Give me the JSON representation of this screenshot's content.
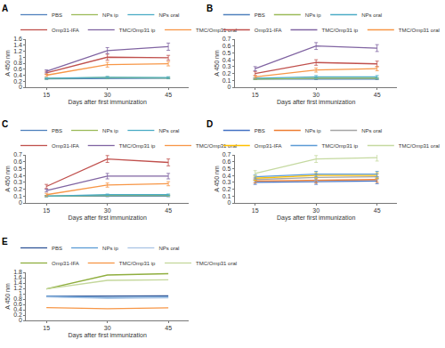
{
  "chart_data": [
    {
      "type": "line",
      "title": "A",
      "x_label": "Days after first immunization",
      "y_label": "A 450 nm",
      "x": [
        15,
        30,
        45
      ],
      "xlim": [
        10,
        50
      ],
      "xticks": [
        15,
        30,
        45
      ],
      "ylim": [
        0,
        1.6
      ],
      "yticks": [
        0,
        0.2,
        0.4,
        0.6,
        0.8,
        1,
        1.2,
        1.4,
        1.6
      ],
      "grid": false,
      "legend": "top",
      "series": [
        {
          "name": "PBS",
          "color": "#4f81bd",
          "values": [
            0.28,
            0.3,
            0.3
          ],
          "errors": [
            0.02,
            0.02,
            0.02
          ]
        },
        {
          "name": "NPs ip",
          "color": "#9bbb59",
          "values": [
            0.29,
            0.32,
            0.31
          ],
          "errors": [
            0.02,
            0.03,
            0.02
          ]
        },
        {
          "name": "NPs oral",
          "color": "#4bacc6",
          "values": [
            0.3,
            0.33,
            0.32
          ],
          "errors": [
            0.02,
            0.03,
            0.03
          ]
        },
        {
          "name": "Omp31-IFA",
          "color": "#c0504d",
          "values": [
            0.48,
            1.0,
            0.98
          ],
          "errors": [
            0.05,
            0.1,
            0.08
          ]
        },
        {
          "name": "TMC/Omp31 ip",
          "color": "#8064a2",
          "values": [
            0.53,
            1.22,
            1.35
          ],
          "errors": [
            0.05,
            0.1,
            0.12
          ]
        },
        {
          "name": "TMC/Omp31 oral",
          "color": "#f79646",
          "values": [
            0.4,
            0.75,
            0.78
          ],
          "errors": [
            0.04,
            0.08,
            0.07
          ]
        }
      ]
    },
    {
      "type": "line",
      "title": "B",
      "x_label": "Days after first immunization",
      "y_label": "A 450 nm",
      "x": [
        15,
        30,
        45
      ],
      "xlim": [
        10,
        50
      ],
      "xticks": [
        15,
        30,
        45
      ],
      "ylim": [
        0,
        0.7
      ],
      "yticks": [
        0,
        0.1,
        0.2,
        0.3,
        0.4,
        0.5,
        0.6,
        0.7
      ],
      "grid": false,
      "legend": "top",
      "series": [
        {
          "name": "PBS",
          "color": "#4f81bd",
          "values": [
            0.12,
            0.12,
            0.12
          ],
          "errors": [
            0.01,
            0.01,
            0.01
          ]
        },
        {
          "name": "NPs ip",
          "color": "#9bbb59",
          "values": [
            0.12,
            0.13,
            0.13
          ],
          "errors": [
            0.01,
            0.01,
            0.01
          ]
        },
        {
          "name": "NPs oral",
          "color": "#4bacc6",
          "values": [
            0.13,
            0.15,
            0.15
          ],
          "errors": [
            0.01,
            0.02,
            0.02
          ]
        },
        {
          "name": "Omp31-IFA",
          "color": "#c0504d",
          "values": [
            0.2,
            0.36,
            0.34
          ],
          "errors": [
            0.03,
            0.04,
            0.04
          ]
        },
        {
          "name": "TMC/Omp31 ip",
          "color": "#8064a2",
          "values": [
            0.27,
            0.6,
            0.57
          ],
          "errors": [
            0.03,
            0.05,
            0.05
          ]
        },
        {
          "name": "TMC/Omp31 oral",
          "color": "#f79646",
          "values": [
            0.15,
            0.25,
            0.27
          ],
          "errors": [
            0.02,
            0.03,
            0.03
          ]
        }
      ]
    },
    {
      "type": "line",
      "title": "C",
      "x_label": "Days after first immunization",
      "y_label": "A 450 nm",
      "x": [
        15,
        30,
        45
      ],
      "xlim": [
        10,
        50
      ],
      "xticks": [
        15,
        30,
        45
      ],
      "ylim": [
        0,
        0.7
      ],
      "yticks": [
        0,
        0.1,
        0.2,
        0.3,
        0.4,
        0.5,
        0.6,
        0.7
      ],
      "grid": false,
      "legend": "top",
      "series": [
        {
          "name": "PBS",
          "color": "#4f81bd",
          "values": [
            0.1,
            0.1,
            0.1
          ],
          "errors": [
            0.01,
            0.01,
            0.01
          ]
        },
        {
          "name": "NPs ip",
          "color": "#9bbb59",
          "values": [
            0.1,
            0.11,
            0.11
          ],
          "errors": [
            0.01,
            0.01,
            0.01
          ]
        },
        {
          "name": "NPs oral",
          "color": "#4bacc6",
          "values": [
            0.1,
            0.12,
            0.12
          ],
          "errors": [
            0.01,
            0.01,
            0.01
          ]
        },
        {
          "name": "Omp31-IFA",
          "color": "#c0504d",
          "values": [
            0.24,
            0.64,
            0.59
          ],
          "errors": [
            0.03,
            0.05,
            0.05
          ]
        },
        {
          "name": "TMC/Omp31 ip",
          "color": "#8064a2",
          "values": [
            0.18,
            0.39,
            0.39
          ],
          "errors": [
            0.02,
            0.04,
            0.04
          ]
        },
        {
          "name": "TMC/Omp31 oral",
          "color": "#f79646",
          "values": [
            0.12,
            0.26,
            0.28
          ],
          "errors": [
            0.02,
            0.03,
            0.03
          ]
        }
      ]
    },
    {
      "type": "line",
      "title": "D",
      "x_label": "Days after first immunization",
      "y_label": "A 450 nm",
      "x": [
        15,
        30,
        45
      ],
      "xlim": [
        10,
        50
      ],
      "xticks": [
        15,
        30,
        45
      ],
      "ylim": [
        0,
        0.7
      ],
      "yticks": [
        0,
        0.1,
        0.2,
        0.3,
        0.4,
        0.5,
        0.6,
        0.7
      ],
      "grid": false,
      "legend": "top",
      "series": [
        {
          "name": "PBS",
          "color": "#4472c4",
          "values": [
            0.3,
            0.31,
            0.32
          ],
          "errors": [
            0.03,
            0.04,
            0.04
          ]
        },
        {
          "name": "NPs ip",
          "color": "#ed7d31",
          "values": [
            0.32,
            0.33,
            0.34
          ],
          "errors": [
            0.03,
            0.04,
            0.04
          ]
        },
        {
          "name": "NPs oral",
          "color": "#a5a5a5",
          "values": [
            0.34,
            0.37,
            0.38
          ],
          "errors": [
            0.03,
            0.04,
            0.04
          ]
        },
        {
          "name": "Omp31-IFA",
          "color": "#ffc000",
          "values": [
            0.36,
            0.4,
            0.4
          ],
          "errors": [
            0.03,
            0.04,
            0.04
          ]
        },
        {
          "name": "TMC/Omp31 ip",
          "color": "#5b9bd5",
          "values": [
            0.38,
            0.42,
            0.42
          ],
          "errors": [
            0.03,
            0.04,
            0.04
          ]
        },
        {
          "name": "TMC/Omp31 oral",
          "color": "#c5d9a0",
          "values": [
            0.43,
            0.64,
            0.66
          ],
          "errors": [
            0.04,
            0.05,
            0.05
          ]
        }
      ]
    },
    {
      "type": "line",
      "title": "E",
      "x_label": "Days after first immunization",
      "y_label": "A 450 nm",
      "x": [
        15,
        30,
        45
      ],
      "xlim": [
        10,
        50
      ],
      "xticks": [
        15,
        30,
        45
      ],
      "ylim": [
        0,
        1.8
      ],
      "yticks": [
        0,
        0.2,
        0.4,
        0.6,
        0.8,
        1,
        1.2,
        1.4,
        1.6,
        1.8
      ],
      "grid": false,
      "legend": "top",
      "series": [
        {
          "name": "PBS",
          "color": "#2f5597",
          "values": [
            0.9,
            0.9,
            0.92
          ]
        },
        {
          "name": "NPs ip",
          "color": "#5b9bd5",
          "values": [
            0.9,
            0.85,
            0.87
          ]
        },
        {
          "name": "NPs oral",
          "color": "#a9c4e4",
          "values": [
            0.88,
            0.83,
            0.85
          ]
        },
        {
          "name": "Omp31-IFA",
          "color": "#8fae3e",
          "values": [
            1.18,
            1.7,
            1.75
          ]
        },
        {
          "name": "TMC/Omp31 ip",
          "color": "#f79646",
          "values": [
            0.48,
            0.44,
            0.47
          ]
        },
        {
          "name": "TMC/Omp31 oral",
          "color": "#c4d79b",
          "values": [
            1.18,
            1.5,
            1.52
          ]
        }
      ]
    }
  ]
}
